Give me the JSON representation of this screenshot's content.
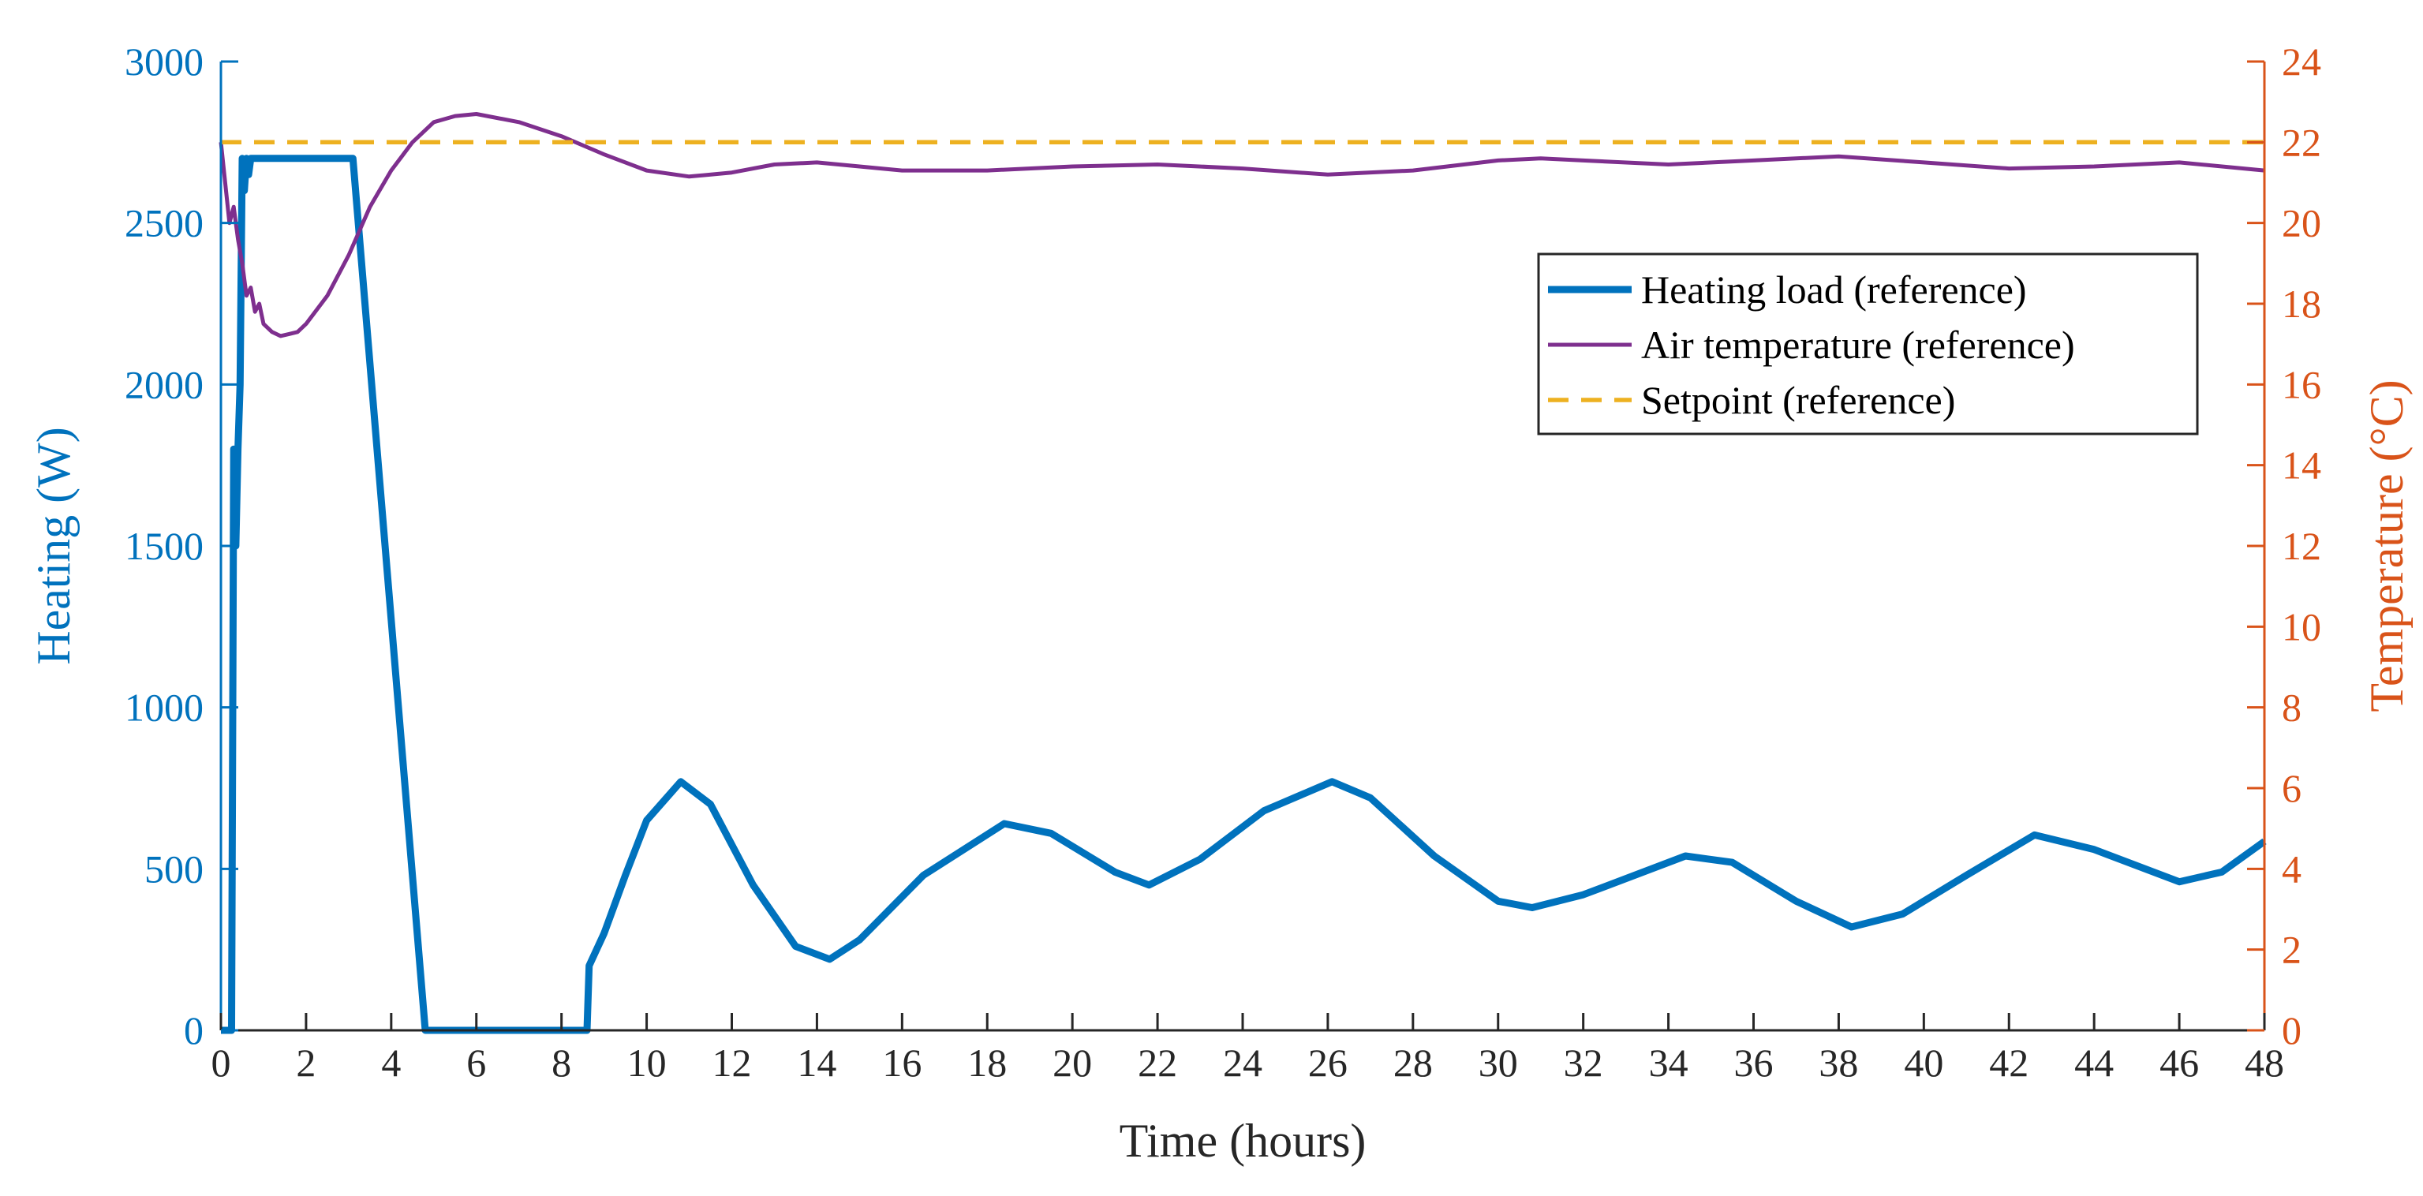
{
  "chart_data": {
    "type": "line",
    "xlabel": "Time (hours)",
    "xlim": [
      0,
      48
    ],
    "xticks": [
      0,
      2,
      4,
      6,
      8,
      10,
      12,
      14,
      16,
      18,
      20,
      22,
      24,
      26,
      28,
      30,
      32,
      34,
      36,
      38,
      40,
      42,
      44,
      46,
      48
    ],
    "y_left": {
      "label": "Heating (W)",
      "lim": [
        0,
        3000
      ],
      "ticks": [
        0,
        500,
        1000,
        1500,
        2000,
        2500,
        3000
      ],
      "color": "#0072BD"
    },
    "y_right": {
      "label": "Temperature (°C)",
      "lim": [
        0,
        24
      ],
      "ticks": [
        0,
        2,
        4,
        6,
        8,
        10,
        12,
        14,
        16,
        18,
        20,
        22,
        24
      ],
      "color": "#D95319"
    },
    "legend_position": "top-right",
    "series": [
      {
        "name": "Heating load (reference)",
        "axis": "left",
        "color": "#0072BD",
        "style": "solid",
        "x": [
          0,
          0.25,
          0.3,
          0.35,
          0.4,
          0.45,
          0.5,
          0.55,
          0.6,
          0.65,
          0.7,
          0.75,
          0.8,
          3.1,
          4.8,
          8.6,
          8.65,
          9.0,
          9.5,
          10.0,
          10.8,
          11.5,
          12.5,
          13.5,
          14.3,
          15.0,
          16.5,
          18.4,
          19.5,
          21.0,
          21.8,
          23.0,
          24.5,
          26.1,
          27.0,
          28.5,
          30.0,
          30.8,
          32.0,
          34.4,
          35.5,
          37.0,
          38.3,
          39.5,
          41.0,
          42.6,
          44.0,
          46.0,
          47.0,
          48.0
        ],
        "y": [
          0,
          0,
          1800,
          1500,
          1800,
          2000,
          2700,
          2600,
          2700,
          2650,
          2700,
          2700,
          2700,
          2700,
          0,
          0,
          200,
          300,
          480,
          650,
          770,
          700,
          450,
          260,
          220,
          280,
          480,
          640,
          610,
          490,
          450,
          530,
          680,
          770,
          720,
          540,
          400,
          380,
          420,
          540,
          520,
          400,
          320,
          360,
          480,
          605,
          560,
          460,
          490,
          585
        ]
      },
      {
        "name": "Air temperature (reference)",
        "axis": "right",
        "color": "#7E2F8E",
        "style": "solid",
        "x": [
          0,
          0.2,
          0.3,
          0.4,
          0.5,
          0.6,
          0.7,
          0.8,
          0.9,
          1.0,
          1.2,
          1.4,
          1.6,
          1.8,
          2.0,
          2.5,
          3.0,
          3.5,
          4.0,
          4.5,
          5.0,
          5.5,
          6.0,
          7.0,
          8.0,
          9.0,
          10.0,
          11.0,
          12.0,
          13.0,
          14.0,
          15.0,
          16.0,
          18.0,
          20.0,
          22.0,
          24.0,
          26.0,
          28.0,
          30.0,
          31.0,
          32.0,
          34.0,
          36.0,
          38.0,
          40.0,
          42.0,
          44.0,
          46.0,
          48.0
        ],
        "y": [
          22.0,
          20.0,
          20.4,
          19.6,
          19.0,
          18.2,
          18.4,
          17.8,
          18.0,
          17.5,
          17.3,
          17.2,
          17.25,
          17.3,
          17.5,
          18.2,
          19.2,
          20.4,
          21.3,
          22.0,
          22.5,
          22.65,
          22.7,
          22.5,
          22.15,
          21.7,
          21.3,
          21.15,
          21.25,
          21.45,
          21.5,
          21.4,
          21.3,
          21.3,
          21.4,
          21.45,
          21.35,
          21.2,
          21.3,
          21.55,
          21.6,
          21.55,
          21.45,
          21.55,
          21.65,
          21.5,
          21.35,
          21.4,
          21.5,
          21.3
        ]
      },
      {
        "name": "Setpoint (reference)",
        "axis": "right",
        "color": "#EDB120",
        "style": "dashed",
        "x": [
          0,
          48
        ],
        "y": [
          22,
          22
        ]
      }
    ]
  }
}
